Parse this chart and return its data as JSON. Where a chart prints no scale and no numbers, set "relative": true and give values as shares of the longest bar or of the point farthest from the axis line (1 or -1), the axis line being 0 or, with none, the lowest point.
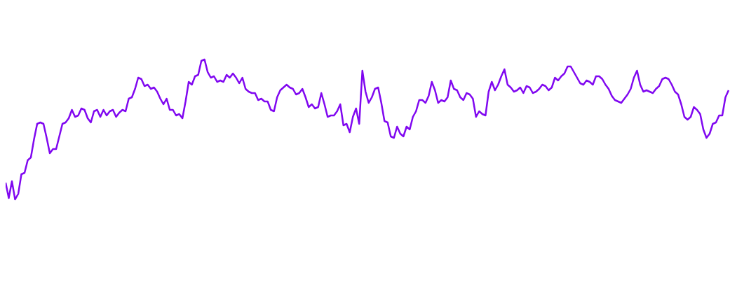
{
  "chart_data": {
    "type": "line",
    "relative": true,
    "categories": [
      null,
      null,
      null,
      null,
      null,
      null,
      null,
      null,
      null,
      null,
      null,
      null,
      null,
      null,
      null,
      null,
      null,
      null,
      null,
      null,
      null,
      null,
      null,
      null,
      null,
      null,
      null,
      null,
      null,
      null,
      null,
      null,
      null,
      null,
      null,
      null,
      null,
      null,
      null,
      null,
      null,
      null,
      null,
      null,
      null,
      null,
      null,
      null,
      null,
      null,
      null,
      null,
      null,
      null,
      null,
      null,
      null,
      null,
      null,
      null,
      null,
      null,
      null,
      null,
      null,
      null,
      null,
      null,
      null,
      null,
      null,
      null,
      null,
      null,
      null,
      null,
      null,
      null,
      null,
      null,
      null,
      null,
      null,
      null,
      null,
      null,
      null,
      null,
      null,
      null,
      null,
      null,
      null,
      null,
      null,
      null,
      null,
      null,
      null,
      null,
      null,
      null,
      null,
      null,
      null,
      null,
      null,
      null,
      null,
      null,
      null,
      null,
      null,
      null,
      null,
      null,
      null,
      null,
      null,
      null,
      null,
      null,
      null,
      null,
      null,
      null,
      null,
      null,
      null,
      null,
      null,
      null,
      null,
      null,
      null,
      null,
      null,
      null,
      null,
      null,
      null,
      null,
      null,
      null,
      null,
      null,
      null,
      null,
      null,
      null,
      null,
      null,
      null,
      null,
      null,
      null,
      null,
      null,
      null,
      null,
      null,
      null,
      null,
      null,
      null,
      null,
      null,
      null,
      null,
      null,
      null,
      null,
      null,
      null,
      null,
      null,
      null,
      null,
      null,
      null,
      null,
      null,
      null,
      null,
      null,
      null,
      null,
      null,
      null,
      null,
      null,
      null,
      null,
      null,
      null,
      null,
      null,
      null,
      null,
      null,
      null,
      null,
      null,
      null,
      null,
      null,
      null,
      null,
      null,
      null,
      null,
      null,
      null,
      null,
      null,
      null,
      null,
      null,
      null,
      null,
      null,
      null,
      null,
      null,
      null,
      null,
      null,
      null,
      null,
      null
    ],
    "series": [
      {
        "color": "#8008f0",
        "values": [
          0.12,
          0.01,
          0.13,
          0,
          0.04,
          0.18,
          0.19,
          0.28,
          0.3,
          0.43,
          0.54,
          0.55,
          0.54,
          0.44,
          0.33,
          0.36,
          0.36,
          0.45,
          0.54,
          0.55,
          0.58,
          0.64,
          0.59,
          0.6,
          0.65,
          0.64,
          0.58,
          0.55,
          0.63,
          0.64,
          0.59,
          0.64,
          0.6,
          0.63,
          0.64,
          0.59,
          0.62,
          0.64,
          0.63,
          0.72,
          0.73,
          0.79,
          0.87,
          0.86,
          0.81,
          0.82,
          0.79,
          0.8,
          0.77,
          0.72,
          0.68,
          0.72,
          0.64,
          0.64,
          0.6,
          0.61,
          0.58,
          0.7,
          0.84,
          0.82,
          0.88,
          0.89,
          0.99,
          1,
          0.91,
          0.87,
          0.88,
          0.84,
          0.85,
          0.84,
          0.89,
          0.87,
          0.9,
          0.87,
          0.83,
          0.87,
          0.79,
          0.77,
          0.76,
          0.76,
          0.71,
          0.72,
          0.7,
          0.7,
          0.64,
          0.63,
          0.73,
          0.78,
          0.8,
          0.82,
          0.8,
          0.79,
          0.75,
          0.76,
          0.79,
          0.73,
          0.66,
          0.68,
          0.65,
          0.66,
          0.76,
          0.68,
          0.59,
          0.6,
          0.6,
          0.63,
          0.68,
          0.53,
          0.54,
          0.48,
          0.59,
          0.65,
          0.54,
          0.92,
          0.77,
          0.69,
          0.73,
          0.79,
          0.8,
          0.69,
          0.56,
          0.55,
          0.45,
          0.44,
          0.52,
          0.47,
          0.45,
          0.52,
          0.5,
          0.59,
          0.63,
          0.71,
          0.71,
          0.69,
          0.74,
          0.84,
          0.78,
          0.69,
          0.71,
          0.7,
          0.73,
          0.85,
          0.79,
          0.78,
          0.73,
          0.71,
          0.76,
          0.75,
          0.72,
          0.59,
          0.63,
          0.61,
          0.6,
          0.77,
          0.84,
          0.78,
          0.82,
          0.88,
          0.93,
          0.82,
          0.8,
          0.77,
          0.78,
          0.8,
          0.76,
          0.81,
          0.8,
          0.76,
          0.77,
          0.79,
          0.82,
          0.81,
          0.78,
          0.8,
          0.87,
          0.85,
          0.88,
          0.9,
          0.95,
          0.95,
          0.91,
          0.87,
          0.83,
          0.82,
          0.85,
          0.84,
          0.82,
          0.88,
          0.88,
          0.86,
          0.82,
          0.79,
          0.74,
          0.71,
          0.7,
          0.69,
          0.72,
          0.75,
          0.79,
          0.87,
          0.92,
          0.82,
          0.77,
          0.78,
          0.77,
          0.76,
          0.79,
          0.81,
          0.86,
          0.87,
          0.86,
          0.82,
          0.77,
          0.75,
          0.68,
          0.59,
          0.57,
          0.59,
          0.66,
          0.64,
          0.61,
          0.5,
          0.44,
          0.47,
          0.54,
          0.55,
          0.6,
          0.6,
          0.73,
          0.78
        ]
      }
    ]
  }
}
